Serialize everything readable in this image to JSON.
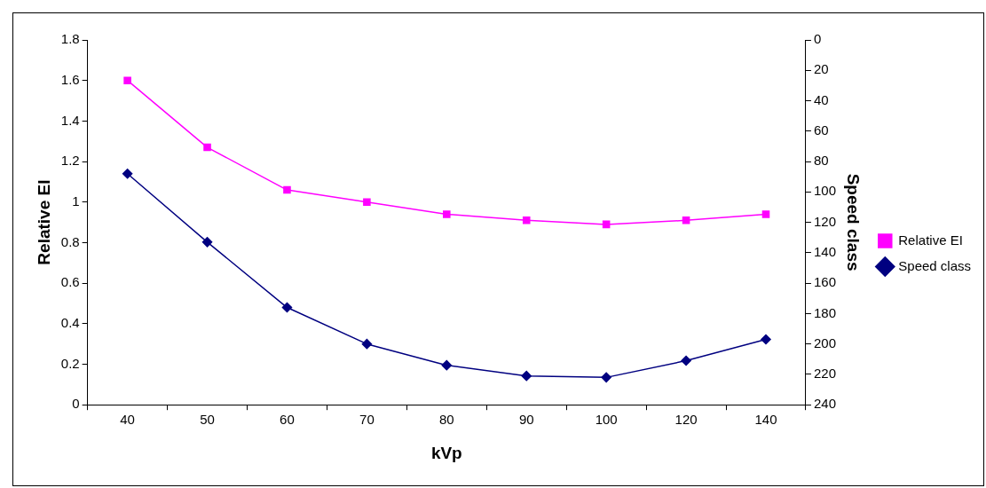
{
  "chart_data": {
    "type": "line",
    "xlabel": "kVp",
    "ylabel": "Relative EI",
    "y2label": "Speed class",
    "categories": [
      "40",
      "50",
      "60",
      "70",
      "80",
      "90",
      "100",
      "120",
      "140"
    ],
    "series": [
      {
        "name": "Relative EI",
        "color": "#ff00ff",
        "marker": "square",
        "values": [
          1.6,
          1.27,
          1.06,
          1.0,
          0.94,
          0.91,
          0.89,
          0.91,
          0.94
        ]
      },
      {
        "name": "Speed class",
        "color": "#000080",
        "marker": "diamond",
        "axis": "y2",
        "values": [
          88,
          133,
          176,
          200,
          214,
          221,
          222,
          211,
          197
        ]
      }
    ],
    "ylim": [
      0,
      1.8
    ],
    "yticks": [
      0,
      0.2,
      0.4,
      0.6,
      0.8,
      1,
      1.2,
      1.4,
      1.6,
      1.8
    ],
    "y2lim": [
      240,
      0
    ],
    "y2ticks": [
      0,
      20,
      40,
      60,
      80,
      100,
      120,
      140,
      160,
      180,
      200,
      220,
      240
    ],
    "legend": "right",
    "line_style": "solid"
  }
}
